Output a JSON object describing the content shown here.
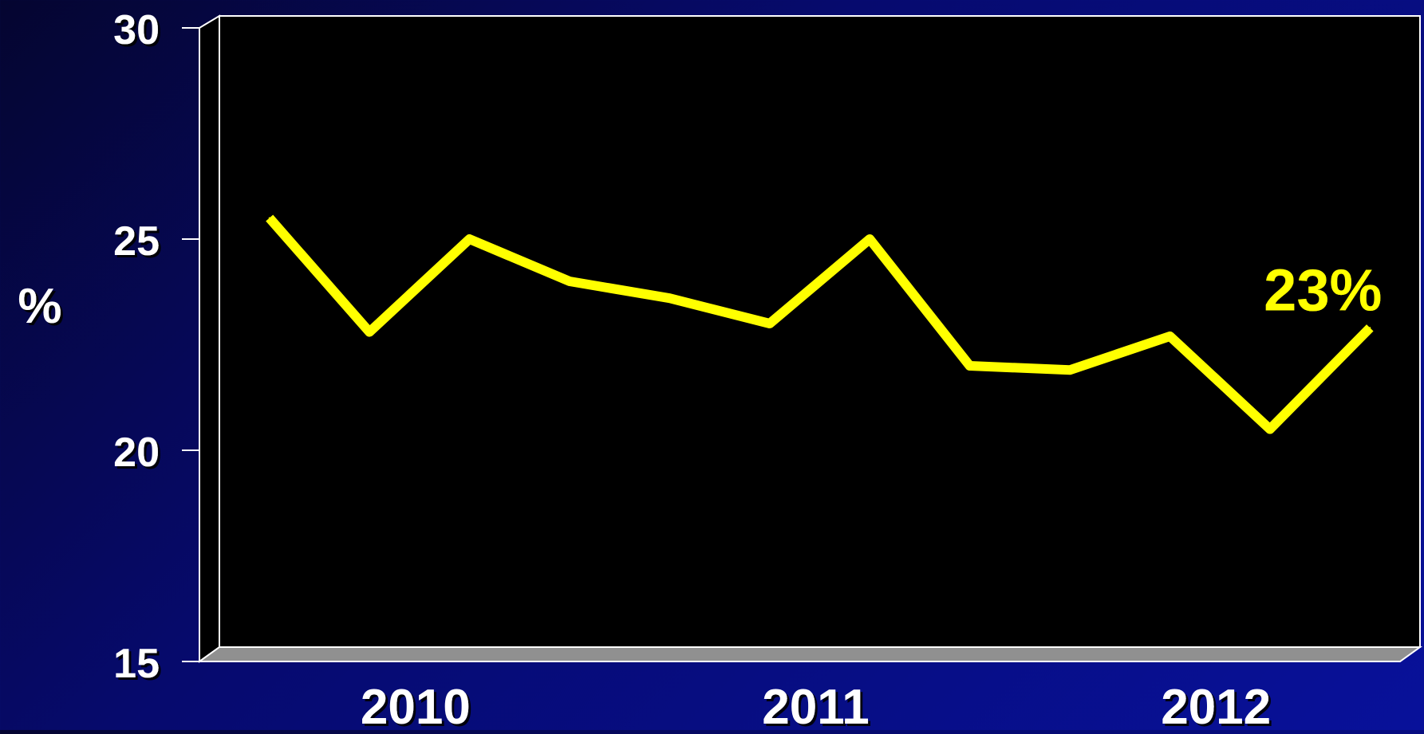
{
  "chart_data": {
    "type": "line",
    "ylabel": "%",
    "ylim": [
      15,
      30
    ],
    "yticks": [
      15,
      20,
      25,
      30
    ],
    "year_groups": [
      {
        "label": "2010",
        "start": 0.5,
        "end": 4.5
      },
      {
        "label": "2011",
        "start": 4.5,
        "end": 8.5
      },
      {
        "label": "2012",
        "start": 8.5,
        "end": 12.5
      }
    ],
    "x": [
      1,
      2,
      3,
      4,
      5,
      6,
      7,
      8,
      9,
      10,
      11,
      12
    ],
    "xlim": [
      0.5,
      12.5
    ],
    "series": [
      {
        "color": "#ffff00",
        "values": [
          25.5,
          22.8,
          25.0,
          24.0,
          23.6,
          23.0,
          25.0,
          22.0,
          21.9,
          22.7,
          20.5,
          22.9
        ]
      }
    ],
    "annotations": [
      {
        "text": "23%",
        "point_index": 11
      }
    ],
    "colors": {
      "plot_background": "#000000",
      "floor": "#909090",
      "text": "#ffffff",
      "line": "#ffff00"
    },
    "grid": false,
    "legend": "none"
  }
}
